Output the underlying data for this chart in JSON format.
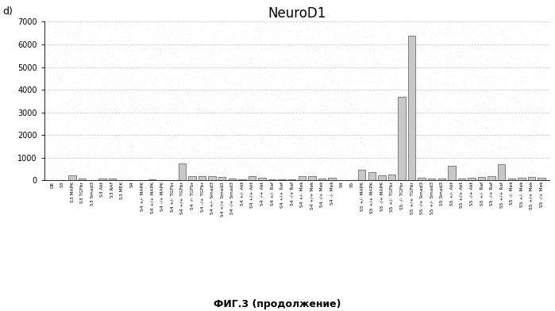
{
  "title": "NeuroD1",
  "panel_label": "d)",
  "footer": "ФИГ.3 (продолжение)",
  "ylim": [
    0,
    7000
  ],
  "yticks": [
    0,
    1000,
    2000,
    3000,
    4000,
    5000,
    6000,
    7000
  ],
  "categories": [
    "DE",
    "S3",
    "S3 MAPK",
    "S3 TGFbr",
    "S3 Smad3",
    "S3 Akt",
    "S3 RAF",
    "S3 MEK",
    "S4",
    "S4 +/- MAPK",
    "S4 +/+ MAPK",
    "S4 -/+ MAPK",
    "S4 +/- TGFbr",
    "S4 +/+ TGFbr",
    "S4 -/- TGFbr",
    "S4 -/+ TGFbr",
    "S4 +/- Smad3",
    "S4 +/+ Smad3",
    "S4 -/+ Smad3",
    "S4 +/- Akt",
    "S4 +/+ Akt",
    "S4 -/+ Akt",
    "S4 +/- Raf",
    "S4 +/+ Raf",
    "S4 -/+ Raf",
    "S4 +/- Mek",
    "S4 +/+ Mek",
    "S4 -/+ Mek",
    "S4 -/- Mek",
    "S4",
    "S5",
    "S5 +/- MAPK",
    "S5 +/+ MAPK",
    "S5 -/+ MAPK",
    "S5 +/- TGFbr",
    "S5 -/- TGFbr",
    "S5 +/+ TGFbr",
    "S5 -/+ Smad3",
    "S5 +/- Smad3",
    "S5 Smad3",
    "S5 +/- Akt",
    "S5 +/+ Akt",
    "S5 -/+ Akt",
    "S5 +/- Raf",
    "S5 -/+ Raf",
    "S5 +/+ Raf",
    "S5 -/- Mek",
    "S5 +/- Mek",
    "S5 +/+ Mek",
    "S5 -/+ Mek"
  ],
  "values": [
    30,
    10,
    230,
    90,
    10,
    100,
    80,
    30,
    20,
    30,
    60,
    30,
    20,
    750,
    180,
    200,
    200,
    150,
    80,
    60,
    200,
    120,
    50,
    60,
    50,
    200,
    200,
    100,
    130,
    30,
    30,
    460,
    380,
    220,
    270,
    3700,
    6400,
    110,
    100,
    70,
    650,
    80,
    130,
    160,
    200,
    700,
    80,
    110,
    150,
    130
  ],
  "bar_color": "#c8c8c8",
  "bar_edge_color": "#555555",
  "background_color": "#ffffff",
  "grid_color": "#999999"
}
